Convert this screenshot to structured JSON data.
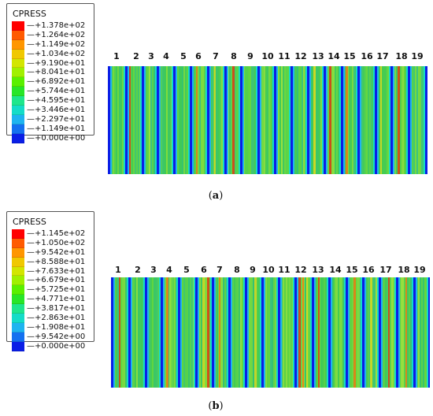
{
  "panel_a": {
    "caption_open": "(",
    "caption_letter": "a",
    "caption_close": ")",
    "legend_title": "CPRESS",
    "legend_values": [
      "+1.378e+02",
      "+1.264e+02",
      "+1.149e+02",
      "+1.034e+02",
      "+9.190e+01",
      "+8.041e+01",
      "+6.892e+01",
      "+5.744e+01",
      "+4.595e+01",
      "+3.446e+01",
      "+2.297e+01",
      "+1.149e+01",
      "+0.000e+00"
    ],
    "legend_colors": [
      "#ff0000",
      "#ff5a00",
      "#ff9600",
      "#f0c800",
      "#d2e600",
      "#a0f000",
      "#5af000",
      "#28e628",
      "#1ee68c",
      "#14dcc8",
      "#1eb4f0",
      "#1470f0",
      "#0a1ee6"
    ],
    "column_numbers": [
      "1",
      "2",
      "3",
      "4",
      "5",
      "6",
      "7",
      "8",
      "9",
      "10",
      "11",
      "12",
      "13",
      "14",
      "15",
      "16",
      "17",
      "18",
      "19"
    ]
  },
  "panel_b": {
    "caption_open": "(",
    "caption_letter": "b",
    "caption_close": ")",
    "legend_title": "CPRESS",
    "legend_values": [
      "+1.145e+02",
      "+1.050e+02",
      "+9.542e+01",
      "+8.588e+01",
      "+7.633e+01",
      "+6.679e+01",
      "+5.725e+01",
      "+4.771e+01",
      "+3.817e+01",
      "+2.863e+01",
      "+1.908e+01",
      "+9.542e+00",
      "+0.000e+00"
    ],
    "legend_colors": [
      "#ff0000",
      "#ff5a00",
      "#ff9600",
      "#f0c800",
      "#d2e600",
      "#a0f000",
      "#5af000",
      "#28e628",
      "#1ee68c",
      "#14dcc8",
      "#1eb4f0",
      "#1470f0",
      "#0a1ee6"
    ],
    "column_numbers": [
      "1",
      "2",
      "3",
      "4",
      "5",
      "6",
      "7",
      "8",
      "9",
      "10",
      "11",
      "12",
      "13",
      "14",
      "15",
      "16",
      "17",
      "18",
      "19"
    ]
  }
}
